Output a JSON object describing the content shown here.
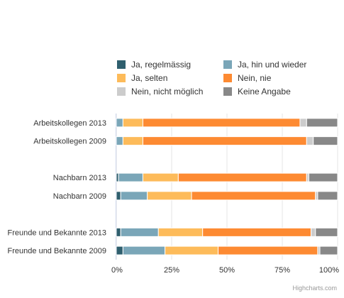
{
  "chart_data": {
    "type": "bar",
    "orientation": "horizontal",
    "stacking": "percent",
    "categories": [
      "Arbeitskollegen 2013",
      "Arbeitskollegen 2009",
      "",
      "Nachbarn 2013",
      "Nachbarn 2009",
      "",
      "Freunde und Bekannte 2013",
      "Freunde und Bekannte 2009"
    ],
    "series": [
      {
        "name": "Ja, regelmässig",
        "color": "#2f5f6e",
        "values": [
          0,
          0,
          null,
          1,
          2,
          null,
          2,
          3
        ]
      },
      {
        "name": "Ja, hin und wieder",
        "color": "#7aa6b8",
        "values": [
          3,
          3,
          null,
          11,
          12,
          null,
          17,
          19
        ]
      },
      {
        "name": "Ja, selten",
        "color": "#fdbb5a",
        "values": [
          9,
          9,
          null,
          16,
          20,
          null,
          20,
          24
        ]
      },
      {
        "name": "Nein, nie",
        "color": "#fd8a32",
        "values": [
          71,
          74,
          null,
          58,
          56,
          null,
          49,
          45
        ]
      },
      {
        "name": "Nein, nicht möglich",
        "color": "#cccccc",
        "values": [
          3,
          3,
          null,
          1,
          1,
          null,
          2,
          1
        ]
      },
      {
        "name": "Keine Angabe",
        "color": "#888888",
        "values": [
          14,
          11,
          null,
          13,
          9,
          null,
          10,
          8
        ]
      }
    ],
    "xaxis": {
      "ticks": [
        "0%",
        "25%",
        "50%",
        "75%",
        "100%"
      ],
      "range": [
        0,
        100
      ],
      "grid": true
    },
    "legend": {
      "position": "top"
    },
    "credits": "Highcharts.com"
  }
}
